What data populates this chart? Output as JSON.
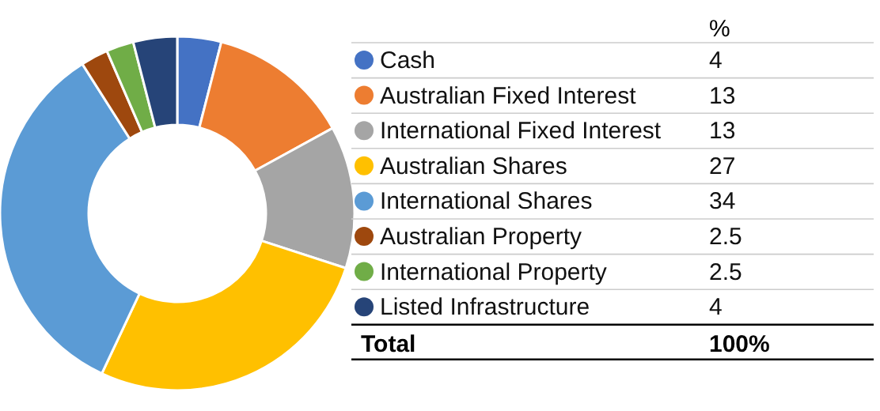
{
  "chart_data": {
    "type": "donut",
    "categories": [
      "Cash",
      "Australian Fixed Interest",
      "International Fixed Interest",
      "Australian Shares",
      "International Shares",
      "Australian Property",
      "International Property",
      "Listed Infrastructure"
    ],
    "values": [
      4,
      13,
      13,
      27,
      34,
      2.5,
      2.5,
      4
    ],
    "colors": [
      "#4472c4",
      "#ed7d31",
      "#a5a5a5",
      "#ffc000",
      "#5b9bd5",
      "#9e480e",
      "#70ad47",
      "#264478"
    ],
    "legend": "right",
    "legend_title": "%",
    "data_labels": true,
    "annotations": [
      "Total",
      "100%"
    ]
  }
}
